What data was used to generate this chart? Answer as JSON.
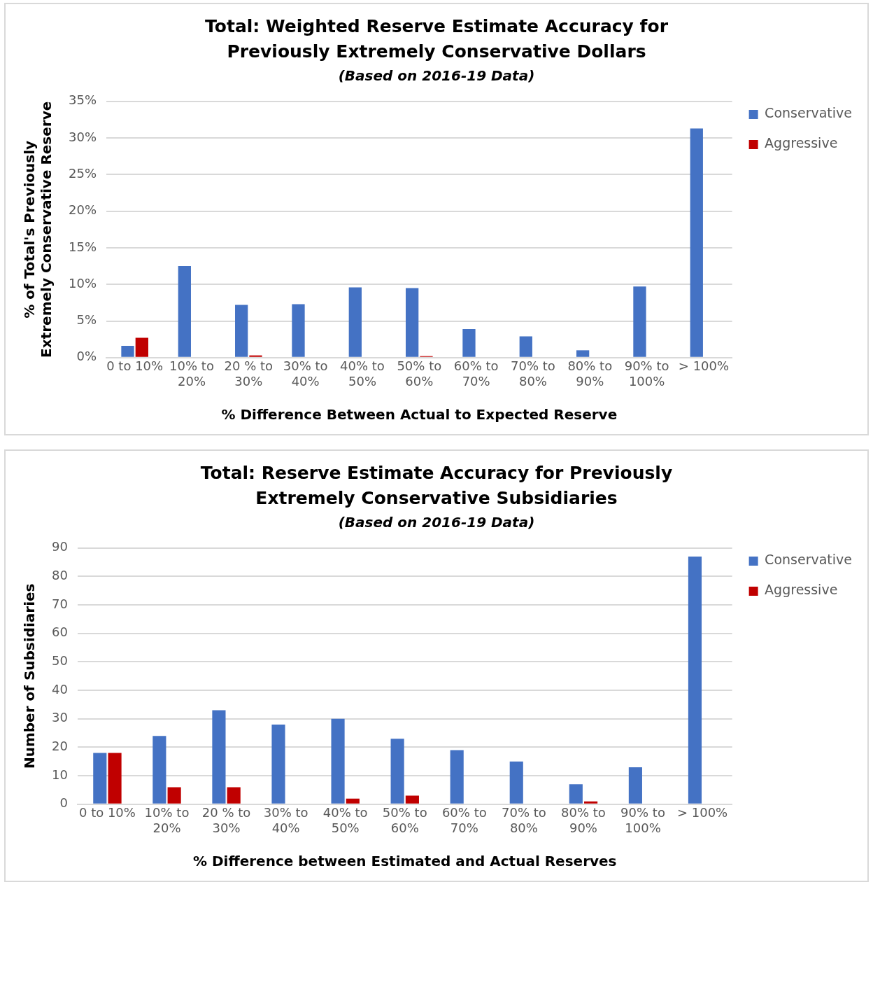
{
  "chart_data": [
    {
      "type": "bar",
      "title": "Total: Weighted Reserve Estimate Accuracy for Previously Extremely Conservative Dollars",
      "subtitle": "(Based on 2016-19 Data)",
      "xlabel": "% Difference Between Actual to Expected Reserve",
      "ylabel": "% of Total's Previously Extremely Conservative Reserve",
      "categories": [
        "0 to 10%",
        "10% to 20%",
        "20 % to 30%",
        "30% to 40%",
        "40% to 50%",
        "50% to 60%",
        "60% to 70%",
        "70% to 80%",
        "80% to 90%",
        "90% to 100%",
        "> 100%"
      ],
      "series": [
        {
          "name": "Conservative",
          "color": "#4472c4",
          "values": [
            1.6,
            12.5,
            7.2,
            7.3,
            9.6,
            9.5,
            3.9,
            2.9,
            1.0,
            9.7,
            31.3
          ]
        },
        {
          "name": "Aggressive",
          "color": "#c00000",
          "values": [
            2.7,
            0,
            0.3,
            0,
            0,
            0.2,
            0,
            0,
            0,
            0,
            0
          ]
        }
      ],
      "ylim": [
        0,
        35
      ],
      "yticks": [
        {
          "value": 0,
          "label": "0%"
        },
        {
          "value": 5,
          "label": "5%"
        },
        {
          "value": 10,
          "label": "10%"
        },
        {
          "value": 15,
          "label": "15%"
        },
        {
          "value": 20,
          "label": "20%"
        },
        {
          "value": 25,
          "label": "25%"
        },
        {
          "value": 30,
          "label": "30%"
        },
        {
          "value": 35,
          "label": "35%"
        }
      ],
      "grid": "y",
      "legend": "right"
    },
    {
      "type": "bar",
      "title": "Total: Reserve Estimate Accuracy for Previously Extremely Conservative Subsidiaries",
      "subtitle": "(Based on 2016-19 Data)",
      "xlabel": "% Difference between Estimated and Actual Reserves",
      "ylabel": "Number of Subsidiaries",
      "categories": [
        "0 to 10%",
        "10% to 20%",
        "20 % to 30%",
        "30% to 40%",
        "40% to 50%",
        "50% to 60%",
        "60% to 70%",
        "70% to 80%",
        "80% to 90%",
        "90% to 100%",
        "> 100%"
      ],
      "series": [
        {
          "name": "Conservative",
          "color": "#4472c4",
          "values": [
            18,
            24,
            33,
            28,
            30,
            23,
            19,
            15,
            7,
            13,
            87
          ]
        },
        {
          "name": "Aggressive",
          "color": "#c00000",
          "values": [
            18,
            6,
            6,
            0,
            2,
            3,
            0,
            0,
            1,
            0,
            0
          ]
        }
      ],
      "ylim": [
        0,
        90
      ],
      "yticks": [
        0,
        10,
        20,
        30,
        40,
        50,
        60,
        70,
        80,
        90
      ],
      "grid": "y",
      "legend": "right"
    }
  ]
}
